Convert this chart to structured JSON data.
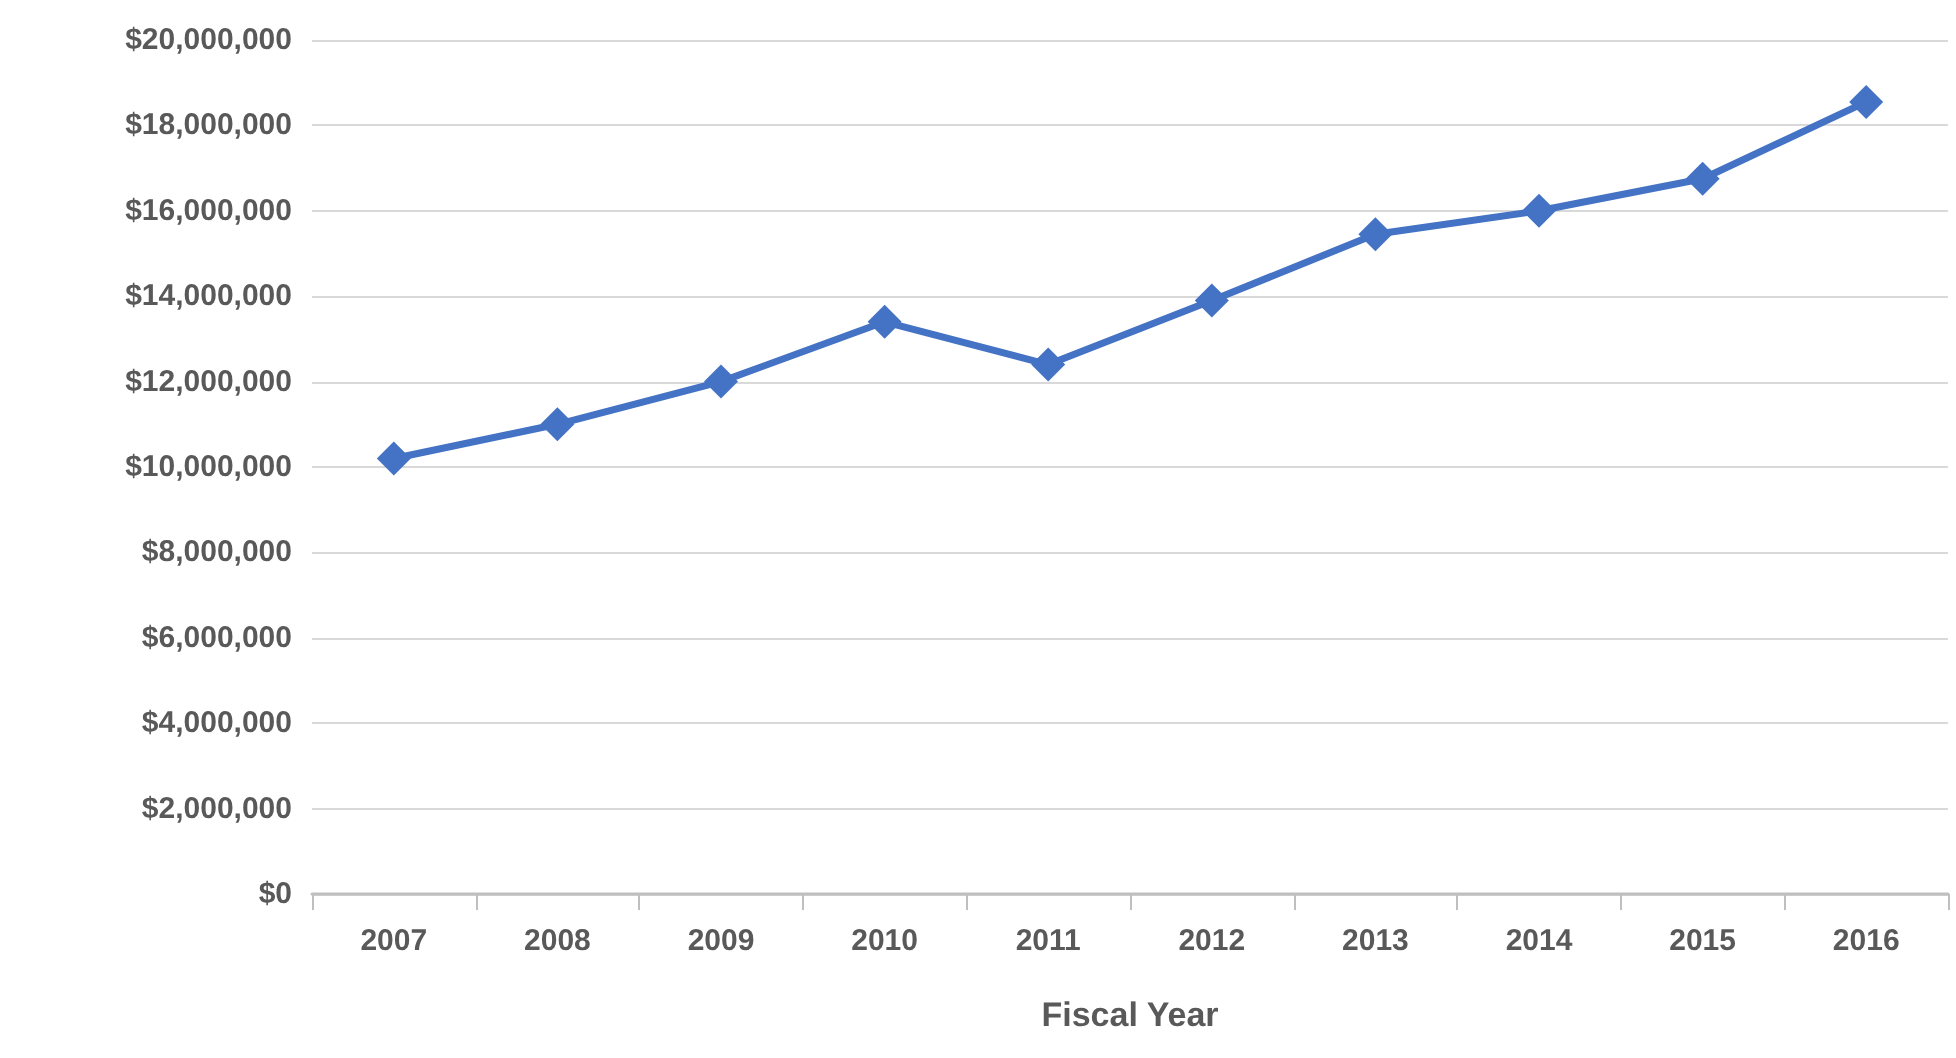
{
  "chart_data": {
    "type": "line",
    "xlabel": "Fiscal Year",
    "categories": [
      "2007",
      "2008",
      "2009",
      "2010",
      "2011",
      "2012",
      "2013",
      "2014",
      "2015",
      "2016"
    ],
    "series": [
      {
        "color": "#4472c4",
        "values": [
          10200000,
          11000000,
          12000000,
          13400000,
          12400000,
          13900000,
          15450000,
          16000000,
          16750000,
          18550000
        ]
      }
    ],
    "ylim": [
      0,
      20000000
    ],
    "yticks": [
      {
        "value": 0,
        "label": "$0"
      },
      {
        "value": 2000000,
        "label": "$2,000,000"
      },
      {
        "value": 4000000,
        "label": "$4,000,000"
      },
      {
        "value": 6000000,
        "label": "$6,000,000"
      },
      {
        "value": 8000000,
        "label": "$8,000,000"
      },
      {
        "value": 10000000,
        "label": "$10,000,000"
      },
      {
        "value": 12000000,
        "label": "$12,000,000"
      },
      {
        "value": 14000000,
        "label": "$14,000,000"
      },
      {
        "value": 16000000,
        "label": "$16,000,000"
      },
      {
        "value": 18000000,
        "label": "$18,000,000"
      },
      {
        "value": 20000000,
        "label": "$20,000,000"
      }
    ],
    "grid": "y",
    "marker": "diamond",
    "line_style": "solid"
  }
}
